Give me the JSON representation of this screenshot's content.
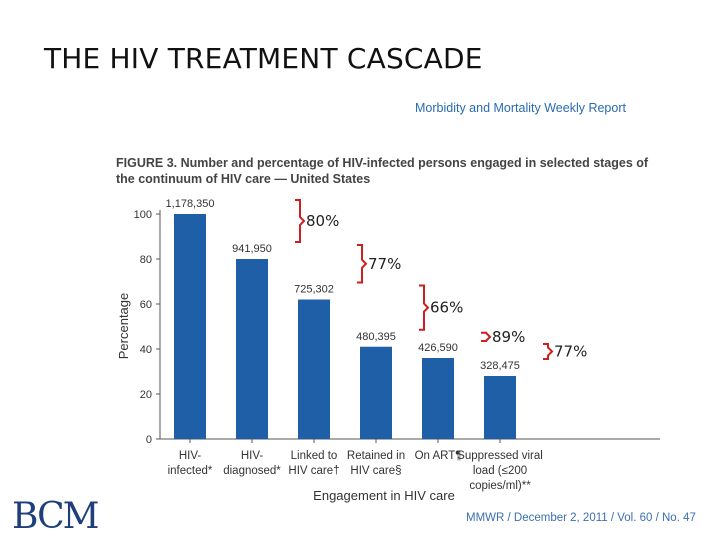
{
  "slide": {
    "title": "THE HIV TREATMENT CASCADE",
    "source": "Morbidity and Mortality Weekly Report",
    "citation": "MMWR  /  December 2, 2011  /  Vol. 60  /  No. 47",
    "logo_text": "BCM"
  },
  "colors": {
    "bar": "#1f5fa8",
    "bracket": "#cc1f1f",
    "axis": "#555555",
    "text": "#333333"
  },
  "chart_data": {
    "type": "bar",
    "title": "FIGURE 3. Number and percentage of HIV-infected persons engaged in selected stages of the continuum of HIV care — United States",
    "xlabel": "Engagement in HIV care",
    "ylabel": "Percentage",
    "ylim": [
      0,
      100
    ],
    "yticks": [
      0,
      20,
      40,
      60,
      80,
      100
    ],
    "grid": false,
    "categories": [
      [
        "HIV-",
        "infected*"
      ],
      [
        "HIV-",
        "diagnosed*"
      ],
      [
        "Linked to",
        "HIV care†"
      ],
      [
        "Retained in",
        "HIV care§"
      ],
      [
        "On ART¶"
      ],
      [
        "Suppressed viral",
        "load (≤200",
        "copies/ml)**"
      ]
    ],
    "values": [
      100,
      80,
      62,
      41,
      36,
      28
    ],
    "data_labels": [
      "1,178,350",
      "941,950",
      "725,302",
      "480,395",
      "426,590",
      "328,475"
    ],
    "annotations": [
      "80%",
      "77%",
      "66%",
      "89%",
      "77%"
    ]
  }
}
